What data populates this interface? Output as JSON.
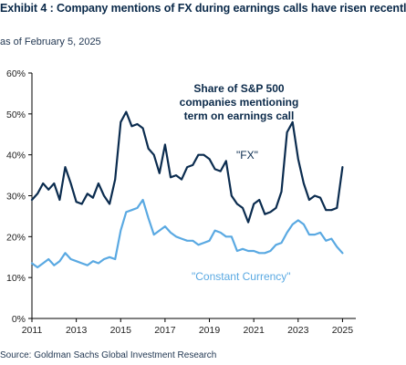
{
  "header": {
    "title": "Exhibit 4 : Company mentions of FX during earnings calls have risen recentl",
    "subtitle": "as of February 5, 2025"
  },
  "footer": {
    "source": "Source: Goldman Sachs Global Investment Research"
  },
  "colors": {
    "fx_line": "#0b2c4f",
    "constant_currency_line": "#5aa9e2",
    "axis": "#000000",
    "text_dark": "#0b2a4a"
  },
  "chart_data": {
    "type": "line",
    "title": "",
    "xlabel": "",
    "ylabel": "",
    "annotation": "Share of S&P 500 companies mentioning term on earnings call",
    "annotation_lines": [
      "Share of S&P 500",
      "companies mentioning",
      "term on earnings call"
    ],
    "xlim": [
      2011,
      2025.6
    ],
    "ylim": [
      0,
      60
    ],
    "x_ticks": [
      2011,
      2013,
      2015,
      2017,
      2019,
      2021,
      2023,
      2025
    ],
    "x_tick_labels": [
      "2011",
      "2013",
      "2015",
      "2017",
      "2019",
      "2021",
      "2023",
      "2025"
    ],
    "y_ticks": [
      0,
      10,
      20,
      30,
      40,
      50,
      60
    ],
    "y_tick_labels": [
      "0%",
      "10%",
      "20%",
      "30%",
      "40%",
      "50%",
      "60%"
    ],
    "grid": false,
    "legend": "inline labels",
    "series": [
      {
        "name": "\"FX\"",
        "label_color": "#0b2c4f",
        "x": [
          2011.0,
          2011.25,
          2011.5,
          2011.75,
          2012.0,
          2012.25,
          2012.5,
          2012.75,
          2013.0,
          2013.25,
          2013.5,
          2013.75,
          2014.0,
          2014.25,
          2014.5,
          2014.75,
          2015.0,
          2015.25,
          2015.5,
          2015.75,
          2016.0,
          2016.25,
          2016.5,
          2016.75,
          2017.0,
          2017.25,
          2017.5,
          2017.75,
          2018.0,
          2018.25,
          2018.5,
          2018.75,
          2019.0,
          2019.25,
          2019.5,
          2019.75,
          2020.0,
          2020.25,
          2020.5,
          2020.75,
          2021.0,
          2021.25,
          2021.5,
          2021.75,
          2022.0,
          2022.25,
          2022.5,
          2022.75,
          2023.0,
          2023.25,
          2023.5,
          2023.75,
          2024.0,
          2024.25,
          2024.5,
          2024.75,
          2025.0
        ],
        "values": [
          29,
          30.5,
          33,
          31.5,
          33,
          29,
          37,
          33,
          28.5,
          28,
          30.5,
          29.5,
          33,
          30,
          28,
          34,
          48,
          50.5,
          47,
          47.5,
          46.5,
          41.5,
          40,
          35.5,
          42.5,
          34.5,
          35,
          34,
          37,
          37.5,
          40,
          40,
          39,
          36.5,
          36,
          38.5,
          30,
          28,
          27,
          23.5,
          28,
          29,
          25.5,
          26,
          27,
          31,
          45.5,
          48,
          39,
          33,
          29,
          30,
          29.5,
          26.5,
          26.5,
          27,
          37
        ]
      },
      {
        "name": "\"Constant Currency\"",
        "label_color": "#5aa9e2",
        "x": [
          2011.0,
          2011.25,
          2011.5,
          2011.75,
          2012.0,
          2012.25,
          2012.5,
          2012.75,
          2013.0,
          2013.25,
          2013.5,
          2013.75,
          2014.0,
          2014.25,
          2014.5,
          2014.75,
          2015.0,
          2015.25,
          2015.5,
          2015.75,
          2016.0,
          2016.25,
          2016.5,
          2016.75,
          2017.0,
          2017.25,
          2017.5,
          2017.75,
          2018.0,
          2018.25,
          2018.5,
          2018.75,
          2019.0,
          2019.25,
          2019.5,
          2019.75,
          2020.0,
          2020.25,
          2020.5,
          2020.75,
          2021.0,
          2021.25,
          2021.5,
          2021.75,
          2022.0,
          2022.25,
          2022.5,
          2022.75,
          2023.0,
          2023.25,
          2023.5,
          2023.75,
          2024.0,
          2024.25,
          2024.5,
          2024.75,
          2025.0
        ],
        "values": [
          13.5,
          12.5,
          13.5,
          14.5,
          13,
          14,
          16,
          14.5,
          14,
          13.5,
          13,
          14,
          13.5,
          14.5,
          15,
          14.5,
          21.5,
          26,
          26.5,
          27,
          29,
          24.5,
          20.5,
          21.5,
          22.5,
          21,
          20,
          19.5,
          19,
          19,
          18,
          18.5,
          19,
          21.5,
          21,
          20,
          20,
          16.5,
          17,
          16.5,
          16.5,
          16,
          16,
          16.5,
          18,
          18.5,
          21,
          23,
          24,
          23,
          20.5,
          20.5,
          21,
          19,
          19.5,
          17.5,
          16
        ]
      }
    ]
  }
}
